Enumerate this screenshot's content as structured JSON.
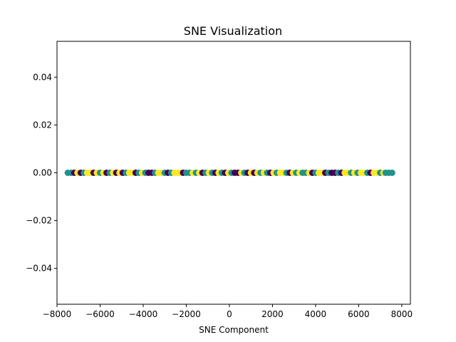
{
  "chart_data": {
    "type": "scatter",
    "title": "SNE Visualization",
    "xlabel": "SNE Component",
    "ylabel": "",
    "xlim": [
      -8000,
      8400
    ],
    "ylim": [
      -0.055,
      0.055
    ],
    "x_ticks": [
      -8000,
      -6000,
      -4000,
      -2000,
      0,
      2000,
      4000,
      6000,
      8000
    ],
    "x_tick_labels": [
      "−8000",
      "−6000",
      "−4000",
      "−2000",
      "0",
      "2000",
      "4000",
      "6000",
      "8000"
    ],
    "y_ticks": [
      -0.04,
      -0.02,
      0.0,
      0.02,
      0.04
    ],
    "y_tick_labels": [
      "−0.04",
      "−0.02",
      "0.00",
      "0.02",
      "0.04"
    ],
    "grid": false,
    "legend": "none",
    "colors": {
      "class_0": "#440154",
      "class_1": "#21918c",
      "class_2": "#fde725"
    },
    "points": [
      {
        "x": -7500,
        "y": 0,
        "c": 1
      },
      {
        "x": -7350,
        "y": 0,
        "c": 1
      },
      {
        "x": -7200,
        "y": 0,
        "c": 0
      },
      {
        "x": -7050,
        "y": 0,
        "c": 2
      },
      {
        "x": -6900,
        "y": 0,
        "c": 0
      },
      {
        "x": -6750,
        "y": 0,
        "c": 1
      },
      {
        "x": -6600,
        "y": 0,
        "c": 2
      },
      {
        "x": -6450,
        "y": 0,
        "c": 2
      },
      {
        "x": -6300,
        "y": 0,
        "c": 0
      },
      {
        "x": -6150,
        "y": 0,
        "c": 2
      },
      {
        "x": -6000,
        "y": 0,
        "c": 1
      },
      {
        "x": -5850,
        "y": 0,
        "c": 2
      },
      {
        "x": -5700,
        "y": 0,
        "c": 0
      },
      {
        "x": -5550,
        "y": 0,
        "c": 1
      },
      {
        "x": -5400,
        "y": 0,
        "c": 2
      },
      {
        "x": -5250,
        "y": 0,
        "c": 0
      },
      {
        "x": -5100,
        "y": 0,
        "c": 2
      },
      {
        "x": -4950,
        "y": 0,
        "c": 0
      },
      {
        "x": -4800,
        "y": 0,
        "c": 1
      },
      {
        "x": -4650,
        "y": 0,
        "c": 2
      },
      {
        "x": -4500,
        "y": 0,
        "c": 2
      },
      {
        "x": -4350,
        "y": 0,
        "c": 0
      },
      {
        "x": -4200,
        "y": 0,
        "c": 1
      },
      {
        "x": -4050,
        "y": 0,
        "c": 2
      },
      {
        "x": -3900,
        "y": 0,
        "c": 1
      },
      {
        "x": -3750,
        "y": 0,
        "c": 0
      },
      {
        "x": -3600,
        "y": 0,
        "c": 0
      },
      {
        "x": -3450,
        "y": 0,
        "c": 1
      },
      {
        "x": -3300,
        "y": 0,
        "c": 2
      },
      {
        "x": -3150,
        "y": 0,
        "c": 2
      },
      {
        "x": -3000,
        "y": 0,
        "c": 1
      },
      {
        "x": -2850,
        "y": 0,
        "c": 0
      },
      {
        "x": -2700,
        "y": 0,
        "c": 1
      },
      {
        "x": -2550,
        "y": 0,
        "c": 2
      },
      {
        "x": -2400,
        "y": 0,
        "c": 2
      },
      {
        "x": -2300,
        "y": 0,
        "c": 2
      },
      {
        "x": -2150,
        "y": 0,
        "c": 0
      },
      {
        "x": -2000,
        "y": 0,
        "c": 1
      },
      {
        "x": -1850,
        "y": 0,
        "c": 1
      },
      {
        "x": -1700,
        "y": 0,
        "c": 2
      },
      {
        "x": -1550,
        "y": 0,
        "c": 1
      },
      {
        "x": -1400,
        "y": 0,
        "c": 2
      },
      {
        "x": -1250,
        "y": 0,
        "c": 0
      },
      {
        "x": -1100,
        "y": 0,
        "c": 1
      },
      {
        "x": -950,
        "y": 0,
        "c": 2
      },
      {
        "x": -800,
        "y": 0,
        "c": 1
      },
      {
        "x": -650,
        "y": 0,
        "c": 0
      },
      {
        "x": -500,
        "y": 0,
        "c": 2
      },
      {
        "x": -350,
        "y": 0,
        "c": 1
      },
      {
        "x": -200,
        "y": 0,
        "c": 0
      },
      {
        "x": -50,
        "y": 0,
        "c": 2
      },
      {
        "x": 100,
        "y": 0,
        "c": 1
      },
      {
        "x": 250,
        "y": 0,
        "c": 0
      },
      {
        "x": 400,
        "y": 0,
        "c": 0
      },
      {
        "x": 550,
        "y": 0,
        "c": 2
      },
      {
        "x": 700,
        "y": 0,
        "c": 1
      },
      {
        "x": 850,
        "y": 0,
        "c": 0
      },
      {
        "x": 1000,
        "y": 0,
        "c": 2
      },
      {
        "x": 1150,
        "y": 0,
        "c": 0
      },
      {
        "x": 1300,
        "y": 0,
        "c": 2
      },
      {
        "x": 1450,
        "y": 0,
        "c": 1
      },
      {
        "x": 1600,
        "y": 0,
        "c": 2
      },
      {
        "x": 1750,
        "y": 0,
        "c": 1
      },
      {
        "x": 1900,
        "y": 0,
        "c": 0
      },
      {
        "x": 2050,
        "y": 0,
        "c": 2
      },
      {
        "x": 2200,
        "y": 0,
        "c": 1
      },
      {
        "x": 2350,
        "y": 0,
        "c": 2
      },
      {
        "x": 2500,
        "y": 0,
        "c": 2
      },
      {
        "x": 2650,
        "y": 0,
        "c": 1
      },
      {
        "x": 2800,
        "y": 0,
        "c": 0
      },
      {
        "x": 2950,
        "y": 0,
        "c": 2
      },
      {
        "x": 3100,
        "y": 0,
        "c": 1
      },
      {
        "x": 3250,
        "y": 0,
        "c": 2
      },
      {
        "x": 3400,
        "y": 0,
        "c": 1
      },
      {
        "x": 3550,
        "y": 0,
        "c": 1
      },
      {
        "x": 3700,
        "y": 0,
        "c": 2
      },
      {
        "x": 3850,
        "y": 0,
        "c": 0
      },
      {
        "x": 4000,
        "y": 0,
        "c": 1
      },
      {
        "x": 4150,
        "y": 0,
        "c": 2
      },
      {
        "x": 4300,
        "y": 0,
        "c": 2
      },
      {
        "x": 4450,
        "y": 0,
        "c": 0
      },
      {
        "x": 4600,
        "y": 0,
        "c": 1
      },
      {
        "x": 4750,
        "y": 0,
        "c": 0
      },
      {
        "x": 4900,
        "y": 0,
        "c": 0
      },
      {
        "x": 5050,
        "y": 0,
        "c": 1
      },
      {
        "x": 5200,
        "y": 0,
        "c": 0
      },
      {
        "x": 5350,
        "y": 0,
        "c": 2
      },
      {
        "x": 5500,
        "y": 0,
        "c": 2
      },
      {
        "x": 5650,
        "y": 0,
        "c": 1
      },
      {
        "x": 5800,
        "y": 0,
        "c": 2
      },
      {
        "x": 5950,
        "y": 0,
        "c": 1
      },
      {
        "x": 6100,
        "y": 0,
        "c": 2
      },
      {
        "x": 6250,
        "y": 0,
        "c": 2
      },
      {
        "x": 6400,
        "y": 0,
        "c": 1
      },
      {
        "x": 6550,
        "y": 0,
        "c": 0
      },
      {
        "x": 6700,
        "y": 0,
        "c": 2
      },
      {
        "x": 6850,
        "y": 0,
        "c": 2
      },
      {
        "x": 7000,
        "y": 0,
        "c": 1
      },
      {
        "x": 7150,
        "y": 0,
        "c": 2
      },
      {
        "x": 7250,
        "y": 0,
        "c": 1
      },
      {
        "x": 7400,
        "y": 0,
        "c": 1
      },
      {
        "x": 7550,
        "y": 0,
        "c": 1
      }
    ]
  }
}
